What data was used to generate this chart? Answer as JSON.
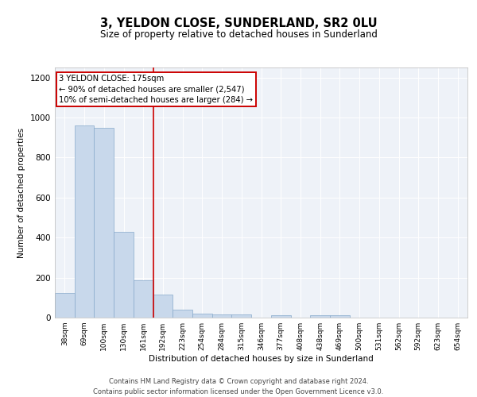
{
  "title1": "3, YELDON CLOSE, SUNDERLAND, SR2 0LU",
  "title2": "Size of property relative to detached houses in Sunderland",
  "xlabel": "Distribution of detached houses by size in Sunderland",
  "ylabel": "Number of detached properties",
  "categories": [
    "38sqm",
    "69sqm",
    "100sqm",
    "130sqm",
    "161sqm",
    "192sqm",
    "223sqm",
    "254sqm",
    "284sqm",
    "315sqm",
    "346sqm",
    "377sqm",
    "408sqm",
    "438sqm",
    "469sqm",
    "500sqm",
    "531sqm",
    "562sqm",
    "592sqm",
    "623sqm",
    "654sqm"
  ],
  "bar_heights": [
    125,
    960,
    950,
    430,
    185,
    115,
    40,
    20,
    15,
    15,
    0,
    10,
    0,
    10,
    10,
    0,
    0,
    0,
    0,
    0,
    0
  ],
  "ylim": [
    0,
    1250
  ],
  "yticks": [
    0,
    200,
    400,
    600,
    800,
    1000,
    1200
  ],
  "bar_color": "#c8d8eb",
  "bar_edge_color": "#88aacb",
  "vline_x_idx": 4.5,
  "vline_color": "#cc0000",
  "annotation_text": "3 YELDON CLOSE: 175sqm\n← 90% of detached houses are smaller (2,547)\n10% of semi-detached houses are larger (284) →",
  "footer": "Contains HM Land Registry data © Crown copyright and database right 2024.\nContains public sector information licensed under the Open Government Licence v3.0.",
  "plot_bg_color": "#eef2f8"
}
